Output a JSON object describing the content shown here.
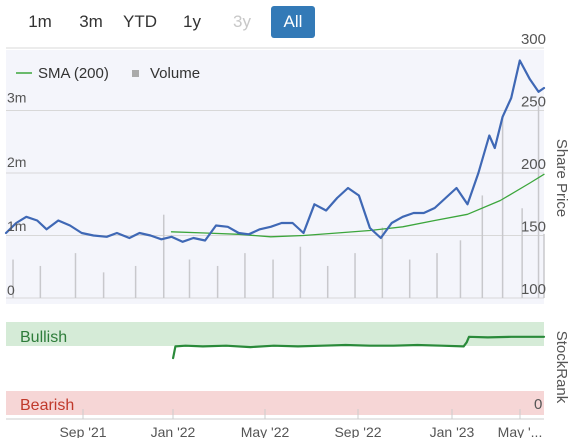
{
  "range_selector": {
    "buttons": [
      {
        "label": "1m",
        "state": "normal"
      },
      {
        "label": "3m",
        "state": "normal"
      },
      {
        "label": "YTD",
        "state": "normal"
      },
      {
        "label": "1y",
        "state": "normal"
      },
      {
        "label": "3y",
        "state": "disabled"
      },
      {
        "label": "All",
        "state": "active"
      }
    ]
  },
  "colors": {
    "price_line": "#3f68b5",
    "sma_line": "#3ca63c",
    "volume_bars": "#c8c8cc",
    "plot_bg": "#f4f5fb",
    "bullish_band": "#d5ebd7",
    "bearish_band": "#f6d6d6",
    "stockrank_line": "#2a8a3a",
    "active_button": "#337ab7"
  },
  "chart_data": [
    {
      "type": "line",
      "legend": [
        {
          "label": "SMA (200)",
          "marker": "line",
          "color": "#3ca63c"
        },
        {
          "label": "Volume",
          "marker": "square",
          "color": "#aaaaaa"
        }
      ],
      "legend_position": "top-left",
      "y_right": {
        "label": "Share Price",
        "ticks": [
          "300",
          "250",
          "200",
          "150",
          "100"
        ],
        "range": [
          100,
          300
        ]
      },
      "y_left": {
        "label": "",
        "ticks": [
          "3m",
          "2m",
          "1m",
          "0"
        ],
        "range": [
          0,
          3.9
        ]
      },
      "x_ticks": [
        "Sep '21",
        "Jan '22",
        "May '22",
        "Sep '22",
        "Jan '23",
        "May '..."
      ],
      "x_range": [
        "2021-07-23",
        "2023-06-12"
      ],
      "grid": true,
      "series": [
        {
          "name": "Share Price",
          "x": [
            "2021-07-23",
            "2021-08-05",
            "2021-08-18",
            "2021-09-01",
            "2021-09-13",
            "2021-09-28",
            "2021-10-13",
            "2021-10-28",
            "2021-11-12",
            "2021-11-29",
            "2021-12-12",
            "2021-12-28",
            "2022-01-10",
            "2022-01-24",
            "2022-02-07",
            "2022-02-20",
            "2022-03-06",
            "2022-03-20",
            "2022-04-04",
            "2022-04-18",
            "2022-05-03",
            "2022-05-17",
            "2022-05-30",
            "2022-06-13",
            "2022-06-27",
            "2022-07-11",
            "2022-07-25",
            "2022-08-08",
            "2022-08-22",
            "2022-09-06",
            "2022-09-20",
            "2022-10-04",
            "2022-10-18",
            "2022-11-01",
            "2022-11-15",
            "2022-11-29",
            "2022-12-13",
            "2022-12-27",
            "2023-01-09",
            "2023-01-23",
            "2023-02-06",
            "2023-02-20",
            "2023-03-06",
            "2023-03-20",
            "2023-04-03",
            "2023-04-10",
            "2023-04-20",
            "2023-05-01",
            "2023-05-12",
            "2023-05-25",
            "2023-06-05",
            "2023-06-12"
          ],
          "y": [
            152,
            160,
            165,
            162,
            155,
            162,
            158,
            152,
            150,
            149,
            152,
            148,
            152,
            150,
            147,
            149,
            145,
            148,
            146,
            158,
            157,
            152,
            151,
            155,
            157,
            160,
            160,
            152,
            175,
            170,
            180,
            188,
            182,
            156,
            148,
            160,
            165,
            168,
            168,
            172,
            180,
            188,
            175,
            200,
            230,
            220,
            245,
            260,
            290,
            275,
            265,
            268
          ]
        },
        {
          "name": "SMA (200)",
          "x": [
            "2022-02-20",
            "2022-04-04",
            "2022-05-17",
            "2022-06-27",
            "2022-08-08",
            "2022-09-20",
            "2022-11-01",
            "2022-12-13",
            "2023-01-23",
            "2023-03-06",
            "2023-04-17",
            "2023-05-25",
            "2023-06-12"
          ],
          "y": [
            153,
            152,
            151,
            149,
            150,
            152,
            154,
            157,
            162,
            167,
            178,
            192,
            199
          ]
        },
        {
          "name": "Volume",
          "x": [
            "2021-08-01",
            "2021-09-05",
            "2021-10-20",
            "2021-11-25",
            "2022-01-05",
            "2022-02-10",
            "2022-03-15",
            "2022-04-20",
            "2022-05-25",
            "2022-06-30",
            "2022-08-04",
            "2022-09-08",
            "2022-10-13",
            "2022-11-17",
            "2022-12-22",
            "2023-01-26",
            "2023-02-25",
            "2023-03-25",
            "2023-04-20",
            "2023-05-15",
            "2023-06-05",
            "2023-06-12"
          ],
          "y": [
            0.6,
            0.5,
            0.7,
            0.4,
            0.5,
            1.3,
            0.6,
            0.5,
            0.7,
            0.6,
            0.8,
            0.5,
            0.7,
            1.1,
            0.6,
            0.7,
            0.9,
            1.6,
            2.8,
            1.4,
            3.0,
            1.0
          ]
        }
      ]
    },
    {
      "type": "line",
      "title": "",
      "y_right": {
        "label": "StockRank",
        "ticks": [
          "0"
        ],
        "range": [
          0,
          100
        ]
      },
      "bands": [
        {
          "label": "Bullish",
          "color": "#d5ebd7"
        },
        {
          "label": "Bearish",
          "color": "#f6d6d6"
        }
      ],
      "series": [
        {
          "name": "StockRank",
          "x": [
            "2022-02-22",
            "2022-02-25",
            "2022-03-10",
            "2022-04-01",
            "2022-05-01",
            "2022-06-01",
            "2022-07-01",
            "2022-08-01",
            "2022-09-01",
            "2022-10-01",
            "2022-11-01",
            "2022-12-01",
            "2023-01-01",
            "2023-02-01",
            "2023-03-01",
            "2023-03-05",
            "2023-03-08",
            "2023-04-01",
            "2023-05-01",
            "2023-06-12"
          ],
          "y": [
            65,
            82,
            83,
            82,
            83,
            81,
            83,
            82,
            83,
            84,
            83,
            83,
            84,
            83,
            82,
            88,
            96,
            95,
            96,
            96
          ]
        }
      ]
    }
  ]
}
